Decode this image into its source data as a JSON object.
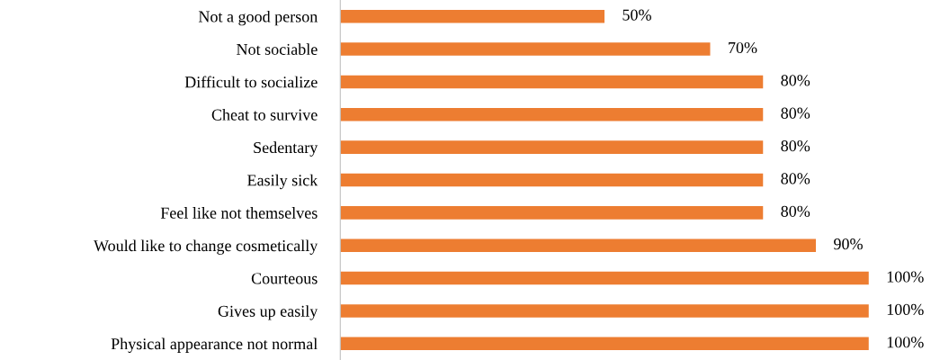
{
  "chart_data": {
    "type": "bar",
    "orientation": "horizontal",
    "categories": [
      "Not a good person",
      "Not sociable",
      "Difficult to socialize",
      "Cheat to survive",
      "Sedentary",
      "Easily sick",
      "Feel like not themselves",
      "Would like to change cosmetically",
      "Courteous",
      "Gives up easily",
      "Physical appearance not normal"
    ],
    "values": [
      50,
      70,
      80,
      80,
      80,
      80,
      80,
      90,
      100,
      100,
      100
    ],
    "value_labels": [
      "50%",
      "70%",
      "80%",
      "80%",
      "80%",
      "80%",
      "80%",
      "90%",
      "100%",
      "100%",
      "100%"
    ],
    "color": "#ed7d31",
    "grid": false,
    "legend": false
  }
}
